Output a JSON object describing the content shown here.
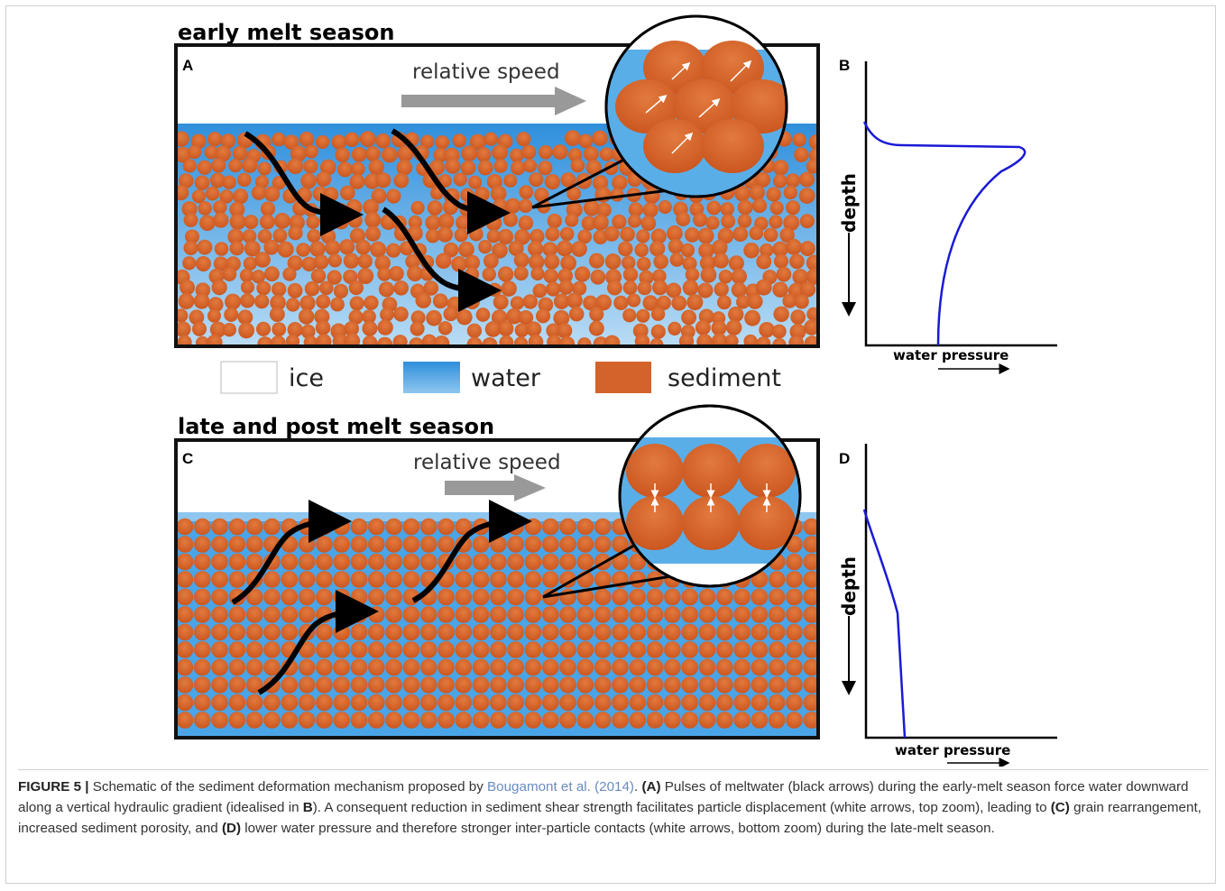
{
  "top_panel": {
    "title": "early melt season",
    "panel_label": "A",
    "arrow_label": "relative speed",
    "graph_label": "B",
    "y_axis": "depth",
    "x_axis": "water pressure"
  },
  "legend": [
    "ice",
    "water",
    "sediment"
  ],
  "bottom_panel": {
    "title": "late and post melt season",
    "panel_label": "C",
    "arrow_label": "relative speed",
    "graph_label": "D",
    "y_axis": "depth",
    "x_axis": "water pressure"
  },
  "caption": {
    "runs": [
      "FIGURE 5 |",
      " Schematic of the sediment deformation mechanism proposed by ",
      "Bougamont et al. (2014)",
      ". ",
      "(A)",
      " Pulses of meltwater (black arrows) during the early-melt season force water downward along a vertical hydraulic gradient (idealised in ",
      "B",
      "). A consequent reduction in sediment shear strength facilitates particle displacement (white arrows, top zoom), leading to ",
      "(C)",
      " grain rearrangement, increased sediment porosity, and ",
      "(D)",
      " lower water pressure and therefore stronger inter-particle contacts (white arrows, bottom zoom) during the late-melt season."
    ]
  }
}
